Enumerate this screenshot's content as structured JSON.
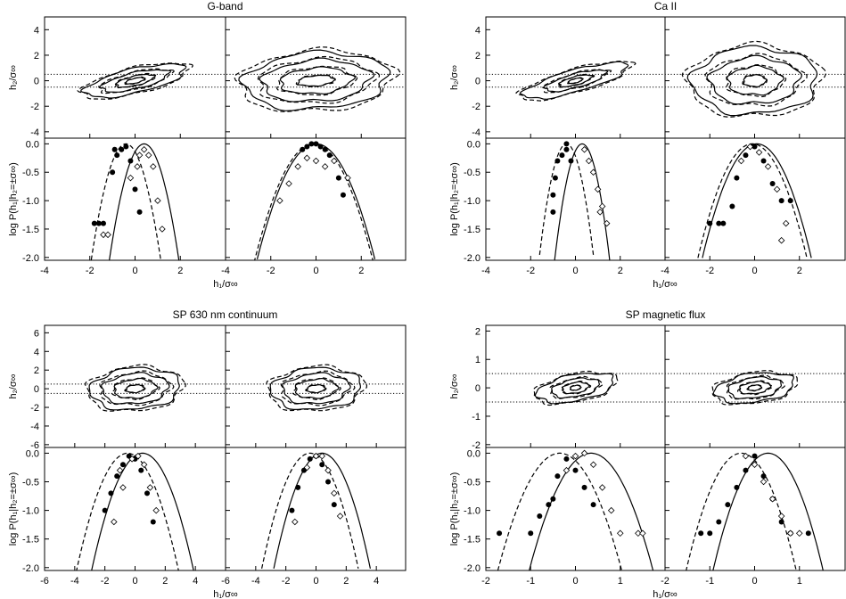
{
  "chart_data": [
    {
      "type": "scatter",
      "title": "G-band",
      "xlabel": "h₁/σ∞",
      "ylabel_top": "h₂/σ∞",
      "ylabel_bottom": "log P(h₁|h₂=±σ∞)",
      "xlim": [
        -4,
        4
      ],
      "xticks": [
        "-4",
        "-2",
        "0",
        "2"
      ],
      "ylim_top": [
        -4.5,
        5
      ],
      "yticks_top": [
        "-4",
        "-2",
        "0",
        "2",
        "4"
      ],
      "hlines_top": [
        0.5,
        -0.5
      ],
      "ylim_bottom": [
        -2.05,
        0.1
      ],
      "yticks_bottom": [
        "0.0",
        "-0.5",
        "-1.0",
        "-1.5",
        "-2.0"
      ],
      "panels": [
        {
          "contours": {
            "rx": [
              2.4,
              1.6,
              0.9,
              0.45
            ],
            "ry": [
              0.9,
              0.6,
              0.35,
              0.18
            ],
            "angle": 25
          },
          "curve_solid": {
            "mu": 0.4,
            "sigma": 0.5
          },
          "curve_dashed": {
            "mu": -0.4,
            "sigma": 0.5
          },
          "dots": [
            [
              -1.8,
              -1.4
            ],
            [
              -1.6,
              -1.4
            ],
            [
              -1.4,
              -1.4
            ],
            [
              -1.0,
              -0.5
            ],
            [
              -0.8,
              -0.2
            ],
            [
              -0.6,
              -0.1
            ],
            [
              -0.4,
              -0.05
            ],
            [
              -0.2,
              -0.3
            ],
            [
              0.0,
              -0.8
            ],
            [
              0.2,
              -1.2
            ],
            [
              -0.9,
              -0.1
            ]
          ],
          "diamonds": [
            [
              1.0,
              -1.0
            ],
            [
              0.8,
              -0.4
            ],
            [
              0.6,
              -0.2
            ],
            [
              0.4,
              -0.1
            ],
            [
              0.2,
              -0.2
            ],
            [
              0.1,
              -0.4
            ],
            [
              -0.2,
              -0.6
            ],
            [
              -1.4,
              -1.6
            ],
            [
              -1.2,
              -1.6
            ],
            [
              1.2,
              -1.5
            ]
          ]
        },
        {
          "contours": {
            "rx": [
              3.2,
              2.4,
              1.6,
              0.8
            ],
            "ry": [
              2.2,
              1.6,
              1.0,
              0.4
            ],
            "angle": 10
          },
          "curve_solid": {
            "mu": 0.0,
            "sigma": 0.85
          },
          "curve_dashed": {
            "mu": -0.1,
            "sigma": 0.85
          },
          "dots": [
            [
              -0.6,
              -0.1
            ],
            [
              -0.4,
              -0.05
            ],
            [
              -0.2,
              0.0
            ],
            [
              0.0,
              0.0
            ],
            [
              0.2,
              -0.05
            ],
            [
              0.4,
              -0.1
            ],
            [
              0.6,
              -0.2
            ],
            [
              1.0,
              -0.6
            ],
            [
              1.2,
              -0.9
            ]
          ],
          "diamonds": [
            [
              -1.6,
              -1.0
            ],
            [
              -1.2,
              -0.7
            ],
            [
              -0.8,
              -0.4
            ],
            [
              -0.4,
              -0.25
            ],
            [
              0.0,
              -0.3
            ],
            [
              0.4,
              -0.4
            ],
            [
              0.8,
              -0.3
            ],
            [
              1.4,
              -0.6
            ]
          ]
        }
      ]
    },
    {
      "type": "scatter",
      "title": "Ca II",
      "xlabel": "h₁/σ∞",
      "ylabel_top": "h₂/σ∞",
      "ylabel_bottom": "log P(h₁|h₂=±σ∞)",
      "xlim": [
        -4,
        4
      ],
      "xticks": [
        "-4",
        "-2",
        "0",
        "2"
      ],
      "ylim_top": [
        -4.5,
        5
      ],
      "yticks_top": [
        "-4",
        "-2",
        "0",
        "2",
        "4"
      ],
      "hlines_top": [
        0.5,
        -0.5
      ],
      "ylim_bottom": [
        -2.05,
        0.1
      ],
      "yticks_bottom": [
        "0.0",
        "-0.5",
        "-1.0",
        "-1.5",
        "-2.0"
      ],
      "panels": [
        {
          "contours": {
            "rx": [
              2.6,
              1.5,
              0.8,
              0.35
            ],
            "ry": [
              0.8,
              0.5,
              0.3,
              0.15
            ],
            "angle": 28
          },
          "curve_solid": {
            "mu": 0.3,
            "sigma": 0.4
          },
          "curve_dashed": {
            "mu": -0.4,
            "sigma": 0.4
          },
          "dots": [
            [
              -1.0,
              -0.9
            ],
            [
              -0.9,
              -0.6
            ],
            [
              -0.8,
              -0.3
            ],
            [
              -0.6,
              -0.2
            ],
            [
              -0.4,
              -0.1
            ],
            [
              -0.2,
              -0.3
            ],
            [
              -0.4,
              0.0
            ],
            [
              -1.0,
              -1.2
            ]
          ],
          "diamonds": [
            [
              0.6,
              -0.3
            ],
            [
              0.8,
              -0.5
            ],
            [
              1.0,
              -0.8
            ],
            [
              1.2,
              -1.1
            ],
            [
              0.4,
              -0.1
            ],
            [
              1.4,
              -1.4
            ],
            [
              1.1,
              -1.2
            ]
          ]
        },
        {
          "contours": {
            "rx": [
              2.8,
              2.0,
              1.2,
              0.5
            ],
            "ry": [
              2.6,
              1.8,
              1.1,
              0.45
            ],
            "angle": 15
          },
          "curve_solid": {
            "mu": 0.1,
            "sigma": 0.8
          },
          "curve_dashed": {
            "mu": -0.1,
            "sigma": 0.8
          },
          "dots": [
            [
              -2.0,
              -1.4
            ],
            [
              -1.6,
              -1.4
            ],
            [
              -1.4,
              -1.4
            ],
            [
              -1.0,
              -1.1
            ],
            [
              -0.8,
              -0.6
            ],
            [
              -0.4,
              -0.2
            ],
            [
              0.0,
              -0.05
            ],
            [
              0.4,
              -0.3
            ],
            [
              0.8,
              -0.7
            ],
            [
              1.2,
              -1.0
            ],
            [
              1.6,
              -1.0
            ]
          ],
          "diamonds": [
            [
              -0.2,
              -0.05
            ],
            [
              0.2,
              -0.15
            ],
            [
              0.6,
              -0.4
            ],
            [
              1.0,
              -0.8
            ],
            [
              1.4,
              -1.4
            ],
            [
              1.2,
              -1.7
            ],
            [
              -0.6,
              -0.3
            ]
          ]
        }
      ]
    },
    {
      "type": "scatter",
      "title": "SP 630 nm continuum",
      "xlabel": "h₁/σ∞",
      "ylabel_top": "h₂/σ∞",
      "ylabel_bottom": "log P(h₁|h₂=±σ∞)",
      "xlim": [
        -6,
        6
      ],
      "xticks": [
        "-6",
        "-4",
        "-2",
        "0",
        "2",
        "4"
      ],
      "ylim_top": [
        -6.3,
        6.8
      ],
      "yticks_top": [
        "-6",
        "-4",
        "-2",
        "0",
        "2",
        "4",
        "6"
      ],
      "hlines_top": [
        0.5,
        -0.5
      ],
      "ylim_bottom": [
        -2.05,
        0.1
      ],
      "yticks_bottom": [
        "0.0",
        "-0.5",
        "-1.0",
        "-1.5",
        "-2.0"
      ],
      "panels": [
        {
          "contours": {
            "rx": [
              3.0,
              2.2,
              1.4,
              0.6
            ],
            "ry": [
              2.2,
              1.6,
              1.0,
              0.4
            ],
            "angle": 12
          },
          "curve_solid": {
            "mu": 0.5,
            "sigma": 1.1
          },
          "curve_dashed": {
            "mu": -0.5,
            "sigma": 1.1
          },
          "dots": [
            [
              -2.0,
              -1.0
            ],
            [
              -1.6,
              -0.7
            ],
            [
              -1.2,
              -0.4
            ],
            [
              -0.8,
              -0.2
            ],
            [
              -0.4,
              -0.05
            ],
            [
              0.0,
              -0.1
            ],
            [
              0.4,
              -0.3
            ],
            [
              0.8,
              -0.7
            ],
            [
              1.2,
              -1.2
            ]
          ],
          "diamonds": [
            [
              -1.4,
              -1.2
            ],
            [
              -0.8,
              -0.6
            ],
            [
              -0.2,
              -0.1
            ],
            [
              0.2,
              -0.05
            ],
            [
              0.6,
              -0.2
            ],
            [
              1.0,
              -0.6
            ],
            [
              1.4,
              -1.0
            ],
            [
              -1.0,
              -0.3
            ]
          ]
        },
        {
          "contours": {
            "rx": [
              3.0,
              2.2,
              1.4,
              0.6
            ],
            "ry": [
              2.2,
              1.6,
              1.0,
              0.4
            ],
            "angle": 10
          },
          "curve_solid": {
            "mu": 0.4,
            "sigma": 1.05
          },
          "curve_dashed": {
            "mu": -0.4,
            "sigma": 1.05
          },
          "dots": [
            [
              -1.6,
              -1.0
            ],
            [
              -1.2,
              -0.6
            ],
            [
              -0.8,
              -0.3
            ],
            [
              -0.4,
              -0.1
            ],
            [
              0.0,
              -0.05
            ],
            [
              0.4,
              -0.2
            ],
            [
              0.8,
              -0.5
            ],
            [
              1.2,
              -0.9
            ]
          ],
          "diamonds": [
            [
              -1.4,
              -1.2
            ],
            [
              -0.6,
              -0.25
            ],
            [
              0.0,
              -0.05
            ],
            [
              0.4,
              -0.05
            ],
            [
              0.8,
              -0.3
            ],
            [
              1.2,
              -0.7
            ],
            [
              1.6,
              -1.1
            ]
          ]
        }
      ]
    },
    {
      "type": "scatter",
      "title": "SP magnetic flux",
      "xlabel": "h₁/σ∞",
      "ylabel_top": "h₂/σ∞",
      "ylabel_bottom": "log P(h₁|h₂=±σ∞)",
      "xlim": [
        -2,
        2
      ],
      "xticks": [
        "-2",
        "-1",
        "0",
        "1"
      ],
      "ylim_top": [
        -2.1,
        2.2
      ],
      "yticks_top": [
        "-2",
        "-1",
        "0",
        "1",
        "2"
      ],
      "hlines_top": [
        0.5,
        -0.5
      ],
      "ylim_bottom": [
        -2.05,
        0.1
      ],
      "yticks_bottom": [
        "0.0",
        "-0.5",
        "-1.0",
        "-1.5",
        "-2.0"
      ],
      "panels": [
        {
          "contours": {
            "rx": [
              0.9,
              0.55,
              0.3,
              0.12
            ],
            "ry": [
              0.45,
              0.3,
              0.18,
              0.08
            ],
            "angle": 20
          },
          "curve_solid": {
            "mu": 0.35,
            "sigma": 0.45
          },
          "curve_dashed": {
            "mu": -0.35,
            "sigma": 0.45
          },
          "dots": [
            [
              -1.7,
              -1.4
            ],
            [
              -1.0,
              -1.4
            ],
            [
              -0.8,
              -1.1
            ],
            [
              -0.6,
              -0.9
            ],
            [
              -0.4,
              -0.4
            ],
            [
              -0.2,
              -0.1
            ],
            [
              0.0,
              -0.3
            ],
            [
              0.2,
              -0.6
            ],
            [
              0.4,
              -0.9
            ],
            [
              -0.5,
              -0.8
            ]
          ],
          "diamonds": [
            [
              -0.2,
              -0.3
            ],
            [
              0.0,
              -0.05
            ],
            [
              0.2,
              0.0
            ],
            [
              0.4,
              -0.2
            ],
            [
              0.6,
              -0.6
            ],
            [
              0.8,
              -1.0
            ],
            [
              1.0,
              -1.4
            ],
            [
              1.4,
              -1.4
            ],
            [
              1.5,
              -1.4
            ]
          ]
        },
        {
          "contours": {
            "rx": [
              0.9,
              0.6,
              0.35,
              0.15
            ],
            "ry": [
              0.5,
              0.35,
              0.2,
              0.09
            ],
            "angle": 15
          },
          "curve_solid": {
            "mu": 0.3,
            "sigma": 0.4
          },
          "curve_dashed": {
            "mu": -0.3,
            "sigma": 0.4
          },
          "dots": [
            [
              -1.2,
              -1.4
            ],
            [
              -1.0,
              -1.4
            ],
            [
              -0.8,
              -1.2
            ],
            [
              -0.6,
              -0.9
            ],
            [
              -0.4,
              -0.6
            ],
            [
              -0.2,
              -0.3
            ],
            [
              0.0,
              -0.05
            ],
            [
              0.2,
              -0.4
            ],
            [
              0.4,
              -0.8
            ],
            [
              0.6,
              -1.2
            ],
            [
              0.8,
              -1.4
            ],
            [
              1.2,
              -1.4
            ]
          ],
          "diamonds": [
            [
              -0.2,
              -0.05
            ],
            [
              0.0,
              -0.2
            ],
            [
              0.2,
              -0.5
            ],
            [
              0.4,
              -0.8
            ],
            [
              0.6,
              -1.1
            ],
            [
              0.8,
              -1.4
            ],
            [
              1.0,
              -1.4
            ]
          ]
        }
      ]
    }
  ]
}
